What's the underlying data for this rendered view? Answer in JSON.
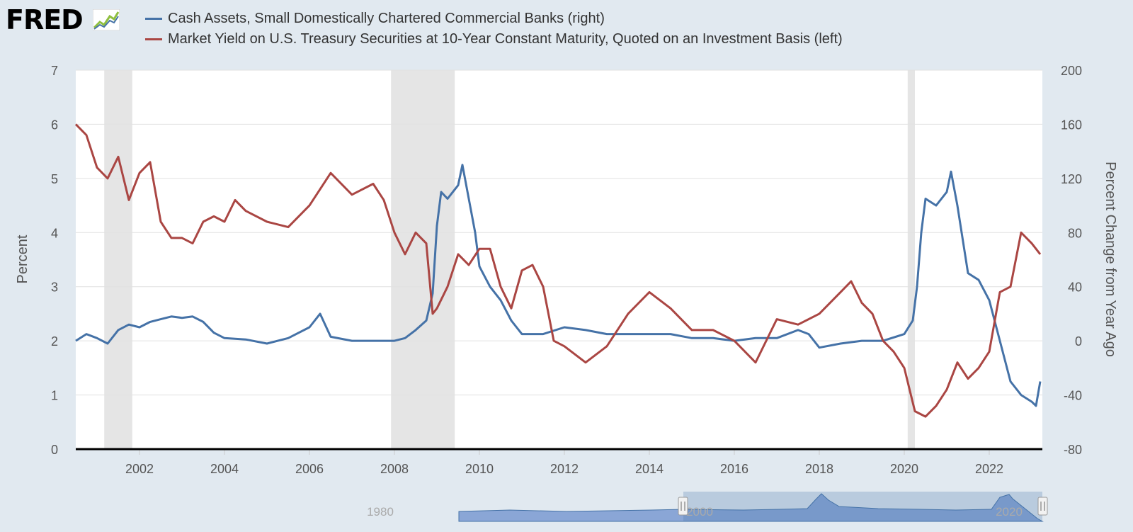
{
  "logo": {
    "text": "FRED"
  },
  "legend": [
    {
      "label": "Cash Assets, Small Domestically Chartered Commercial Banks (right)",
      "color": "#4572a7"
    },
    {
      "label": "Market Yield on U.S. Treasury Securities at 10-Year Constant Maturity, Quoted on an Investment Basis (left)",
      "color": "#aa4643"
    }
  ],
  "chart_data": {
    "type": "line",
    "xlabel": "",
    "ylabel_left": "Percent",
    "ylabel_right": "Percent Change from Year Ago",
    "ylim_left": [
      0,
      7
    ],
    "ylim_right": [
      -80,
      200
    ],
    "xlim": [
      2000.5,
      2023.25
    ],
    "x_ticks": [
      2002,
      2004,
      2006,
      2008,
      2010,
      2012,
      2014,
      2016,
      2018,
      2020,
      2022
    ],
    "y_ticks_left": [
      0,
      1,
      2,
      3,
      4,
      5,
      6,
      7
    ],
    "y_ticks_right": [
      -80,
      -40,
      0,
      40,
      80,
      120,
      160,
      200
    ],
    "grid": true,
    "legend_position": "top",
    "recessions": [
      [
        2001.17,
        2001.83
      ],
      [
        2007.92,
        2009.42
      ],
      [
        2020.08,
        2020.25
      ]
    ],
    "series": [
      {
        "name": "Cash Assets, Small Domestically Chartered Commercial Banks (right)",
        "axis": "right",
        "color": "#4572a7",
        "x": [
          2000.5,
          2000.75,
          2001.0,
          2001.25,
          2001.5,
          2001.75,
          2002.0,
          2002.25,
          2002.5,
          2002.75,
          2003.0,
          2003.25,
          2003.5,
          2003.75,
          2004.0,
          2004.5,
          2005.0,
          2005.5,
          2006.0,
          2006.25,
          2006.5,
          2007.0,
          2007.5,
          2008.0,
          2008.25,
          2008.5,
          2008.75,
          2008.9,
          2009.0,
          2009.1,
          2009.25,
          2009.5,
          2009.6,
          2009.75,
          2009.9,
          2010.0,
          2010.25,
          2010.5,
          2010.75,
          2011.0,
          2011.5,
          2012.0,
          2012.5,
          2013.0,
          2013.5,
          2014.0,
          2014.5,
          2015.0,
          2015.5,
          2016.0,
          2016.5,
          2017.0,
          2017.5,
          2017.75,
          2018.0,
          2018.5,
          2019.0,
          2019.5,
          2020.0,
          2020.1,
          2020.2,
          2020.3,
          2020.4,
          2020.5,
          2020.75,
          2021.0,
          2021.1,
          2021.25,
          2021.5,
          2021.75,
          2022.0,
          2022.25,
          2022.5,
          2022.75,
          2023.0,
          2023.1,
          2023.2
        ],
        "values": [
          0,
          5,
          2,
          -2,
          8,
          12,
          10,
          14,
          16,
          18,
          17,
          18,
          14,
          6,
          2,
          1,
          -2,
          2,
          10,
          20,
          3,
          0,
          0,
          0,
          2,
          8,
          15,
          35,
          85,
          110,
          105,
          115,
          130,
          105,
          80,
          55,
          40,
          30,
          15,
          5,
          5,
          10,
          8,
          5,
          5,
          5,
          5,
          2,
          2,
          0,
          2,
          2,
          8,
          5,
          -5,
          -2,
          0,
          0,
          5,
          10,
          15,
          40,
          80,
          105,
          100,
          110,
          125,
          100,
          50,
          45,
          30,
          0,
          -30,
          -40,
          -45,
          -48,
          -30
        ]
      },
      {
        "name": "Market Yield on U.S. Treasury Securities at 10-Year Constant Maturity, Quoted on an Investment Basis (left)",
        "axis": "left",
        "color": "#aa4643",
        "x": [
          2000.5,
          2000.75,
          2001.0,
          2001.25,
          2001.5,
          2001.75,
          2002.0,
          2002.25,
          2002.5,
          2002.75,
          2003.0,
          2003.25,
          2003.5,
          2003.75,
          2004.0,
          2004.25,
          2004.5,
          2005.0,
          2005.5,
          2006.0,
          2006.5,
          2007.0,
          2007.5,
          2007.75,
          2008.0,
          2008.25,
          2008.5,
          2008.75,
          2008.9,
          2009.0,
          2009.25,
          2009.5,
          2009.75,
          2010.0,
          2010.25,
          2010.5,
          2010.75,
          2011.0,
          2011.25,
          2011.5,
          2011.75,
          2012.0,
          2012.5,
          2013.0,
          2013.5,
          2014.0,
          2014.5,
          2015.0,
          2015.5,
          2016.0,
          2016.5,
          2017.0,
          2017.5,
          2018.0,
          2018.5,
          2018.75,
          2019.0,
          2019.25,
          2019.5,
          2019.75,
          2020.0,
          2020.25,
          2020.5,
          2020.75,
          2021.0,
          2021.25,
          2021.5,
          2021.75,
          2022.0,
          2022.25,
          2022.5,
          2022.75,
          2023.0,
          2023.2
        ],
        "values": [
          6.0,
          5.8,
          5.2,
          5.0,
          5.4,
          4.6,
          5.1,
          5.3,
          4.2,
          3.9,
          3.9,
          3.8,
          4.2,
          4.3,
          4.2,
          4.6,
          4.4,
          4.2,
          4.1,
          4.5,
          5.1,
          4.7,
          4.9,
          4.6,
          4.0,
          3.6,
          4.0,
          3.8,
          2.5,
          2.6,
          3.0,
          3.6,
          3.4,
          3.7,
          3.7,
          3.0,
          2.6,
          3.3,
          3.4,
          3.0,
          2.0,
          1.9,
          1.6,
          1.9,
          2.5,
          2.9,
          2.6,
          2.2,
          2.2,
          2.0,
          1.6,
          2.4,
          2.3,
          2.5,
          2.9,
          3.1,
          2.7,
          2.5,
          2.0,
          1.8,
          1.5,
          0.7,
          0.6,
          0.8,
          1.1,
          1.6,
          1.3,
          1.5,
          1.8,
          2.9,
          3.0,
          4.0,
          3.8,
          3.6
        ]
      }
    ]
  },
  "navigator": {
    "labels": [
      "1980",
      "2000",
      "2020"
    ]
  }
}
